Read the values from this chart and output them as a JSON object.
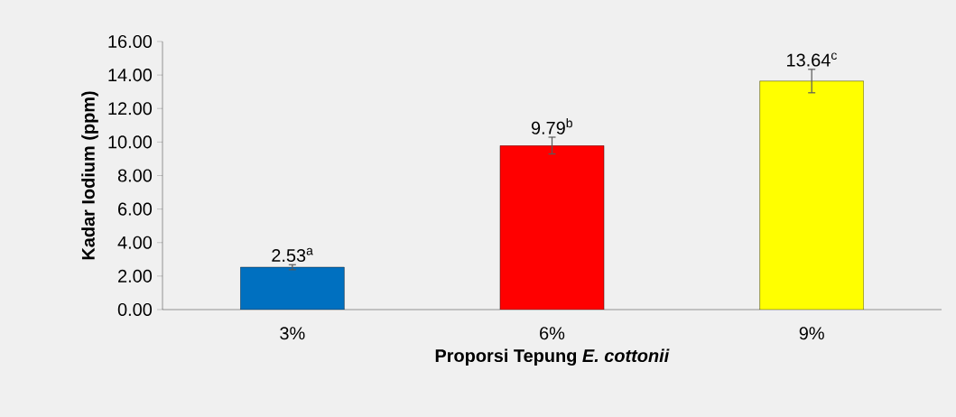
{
  "chart_data": {
    "type": "bar",
    "xlabel": "Proporsi Tepung *E. cottonii*",
    "ylabel": "Kadar Iodium (ppm)",
    "categories": [
      "3%",
      "6%",
      "9%"
    ],
    "values": [
      2.53,
      9.79,
      13.64
    ],
    "colors": [
      "#0070c0",
      "#ff0000",
      "#ffff00"
    ],
    "errors": [
      0.15,
      0.5,
      0.7
    ],
    "value_labels": [
      "2.53$^{a}$",
      "9.79$^{b}$",
      "13.64$^{c}$"
    ],
    "ylim": [
      0,
      16
    ],
    "yticks": [
      {
        "value": 0,
        "label": "0.00"
      },
      {
        "value": 2,
        "label": "2.00"
      },
      {
        "value": 4,
        "label": "4.00"
      },
      {
        "value": 6,
        "label": "6.00"
      },
      {
        "value": 8,
        "label": "8.00"
      },
      {
        "value": 10,
        "label": "10.00"
      },
      {
        "value": 12,
        "label": "12.00"
      },
      {
        "value": 14,
        "label": "14.00"
      },
      {
        "value": 16,
        "label": "16.00"
      }
    ],
    "grid": false
  }
}
